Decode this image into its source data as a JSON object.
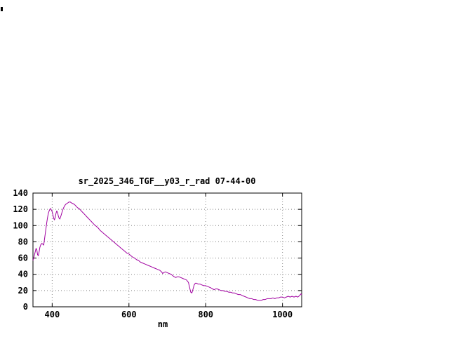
{
  "page": {
    "background": "#ffffff"
  },
  "chart_data": {
    "type": "line",
    "title": "sr_2025_346_TGF__y03_r_rad 07-44-00",
    "xlabel": "nm",
    "ylabel": "",
    "xlim": [
      350,
      1050
    ],
    "ylim": [
      0,
      140
    ],
    "xticks": [
      400,
      600,
      800,
      1000
    ],
    "yticks": [
      0,
      20,
      40,
      60,
      80,
      100,
      120,
      140
    ],
    "grid": true,
    "legend": "none",
    "axis_color": "#000000",
    "grid_color": "#888888",
    "line_color": "#a000a0",
    "series": [
      {
        "name": "spectral_radiance",
        "x": [
          350,
          353,
          356,
          358,
          360,
          362,
          364,
          366,
          368,
          370,
          373,
          376,
          378,
          380,
          382,
          384,
          386,
          388,
          390,
          392,
          394,
          396,
          398,
          400,
          402,
          404,
          406,
          408,
          410,
          412,
          414,
          416,
          418,
          420,
          423,
          426,
          429,
          432,
          435,
          438,
          441,
          444,
          447,
          450,
          454,
          458,
          462,
          466,
          470,
          474,
          478,
          482,
          486,
          490,
          494,
          498,
          502,
          506,
          510,
          515,
          520,
          525,
          530,
          535,
          540,
          545,
          550,
          555,
          560,
          565,
          570,
          575,
          580,
          585,
          590,
          595,
          600,
          605,
          610,
          615,
          620,
          625,
          630,
          635,
          640,
          645,
          650,
          655,
          660,
          665,
          670,
          675,
          680,
          685,
          688,
          690,
          695,
          700,
          705,
          710,
          715,
          718,
          722,
          726,
          730,
          735,
          740,
          745,
          750,
          755,
          758,
          761,
          764,
          767,
          770,
          773,
          776,
          780,
          785,
          790,
          795,
          800,
          805,
          810,
          815,
          818,
          822,
          826,
          830,
          835,
          840,
          845,
          850,
          855,
          860,
          865,
          870,
          875,
          880,
          885,
          890,
          895,
          900,
          905,
          910,
          915,
          920,
          925,
          930,
          935,
          940,
          945,
          950,
          955,
          960,
          965,
          970,
          975,
          980,
          985,
          990,
          995,
          1000,
          1005,
          1010,
          1015,
          1020,
          1025,
          1030,
          1035,
          1040,
          1045,
          1048,
          1050
        ],
        "y": [
          57,
          62,
          68,
          72,
          70,
          64,
          63,
          68,
          73,
          76,
          78,
          77,
          76,
          83,
          90,
          97,
          104,
          110,
          115,
          118,
          120,
          121,
          119,
          117,
          113,
          109,
          107,
          110,
          115,
          118,
          116,
          112,
          109,
          108,
          112,
          117,
          121,
          124,
          126,
          127,
          128,
          129,
          129,
          128,
          127,
          126,
          124,
          122,
          121,
          119,
          117,
          115,
          113,
          111,
          109,
          107,
          105,
          103,
          101,
          99,
          97,
          94,
          92,
          90,
          88,
          86,
          84,
          82,
          80,
          78,
          76,
          74,
          72,
          70,
          68,
          66,
          65,
          63,
          61,
          60,
          58,
          57,
          55,
          54,
          53,
          52,
          51,
          50,
          49,
          48,
          47,
          46,
          45,
          43,
          41,
          42,
          43,
          42,
          41,
          40,
          38,
          37,
          36,
          37,
          37,
          36,
          35,
          34,
          33,
          30,
          24,
          18,
          17,
          22,
          27,
          29,
          29,
          28,
          28,
          27,
          26,
          26,
          25,
          24,
          23,
          22,
          21,
          22,
          22,
          21,
          20,
          20,
          19,
          19,
          18,
          18,
          17,
          17,
          16,
          15,
          15,
          14,
          13,
          12,
          11,
          10,
          10,
          9,
          9,
          8,
          8,
          8,
          9,
          9,
          10,
          10,
          10,
          11,
          10,
          11,
          11,
          12,
          12,
          11,
          12,
          13,
          12,
          13,
          12,
          13,
          12,
          14,
          16,
          15
        ]
      }
    ]
  }
}
